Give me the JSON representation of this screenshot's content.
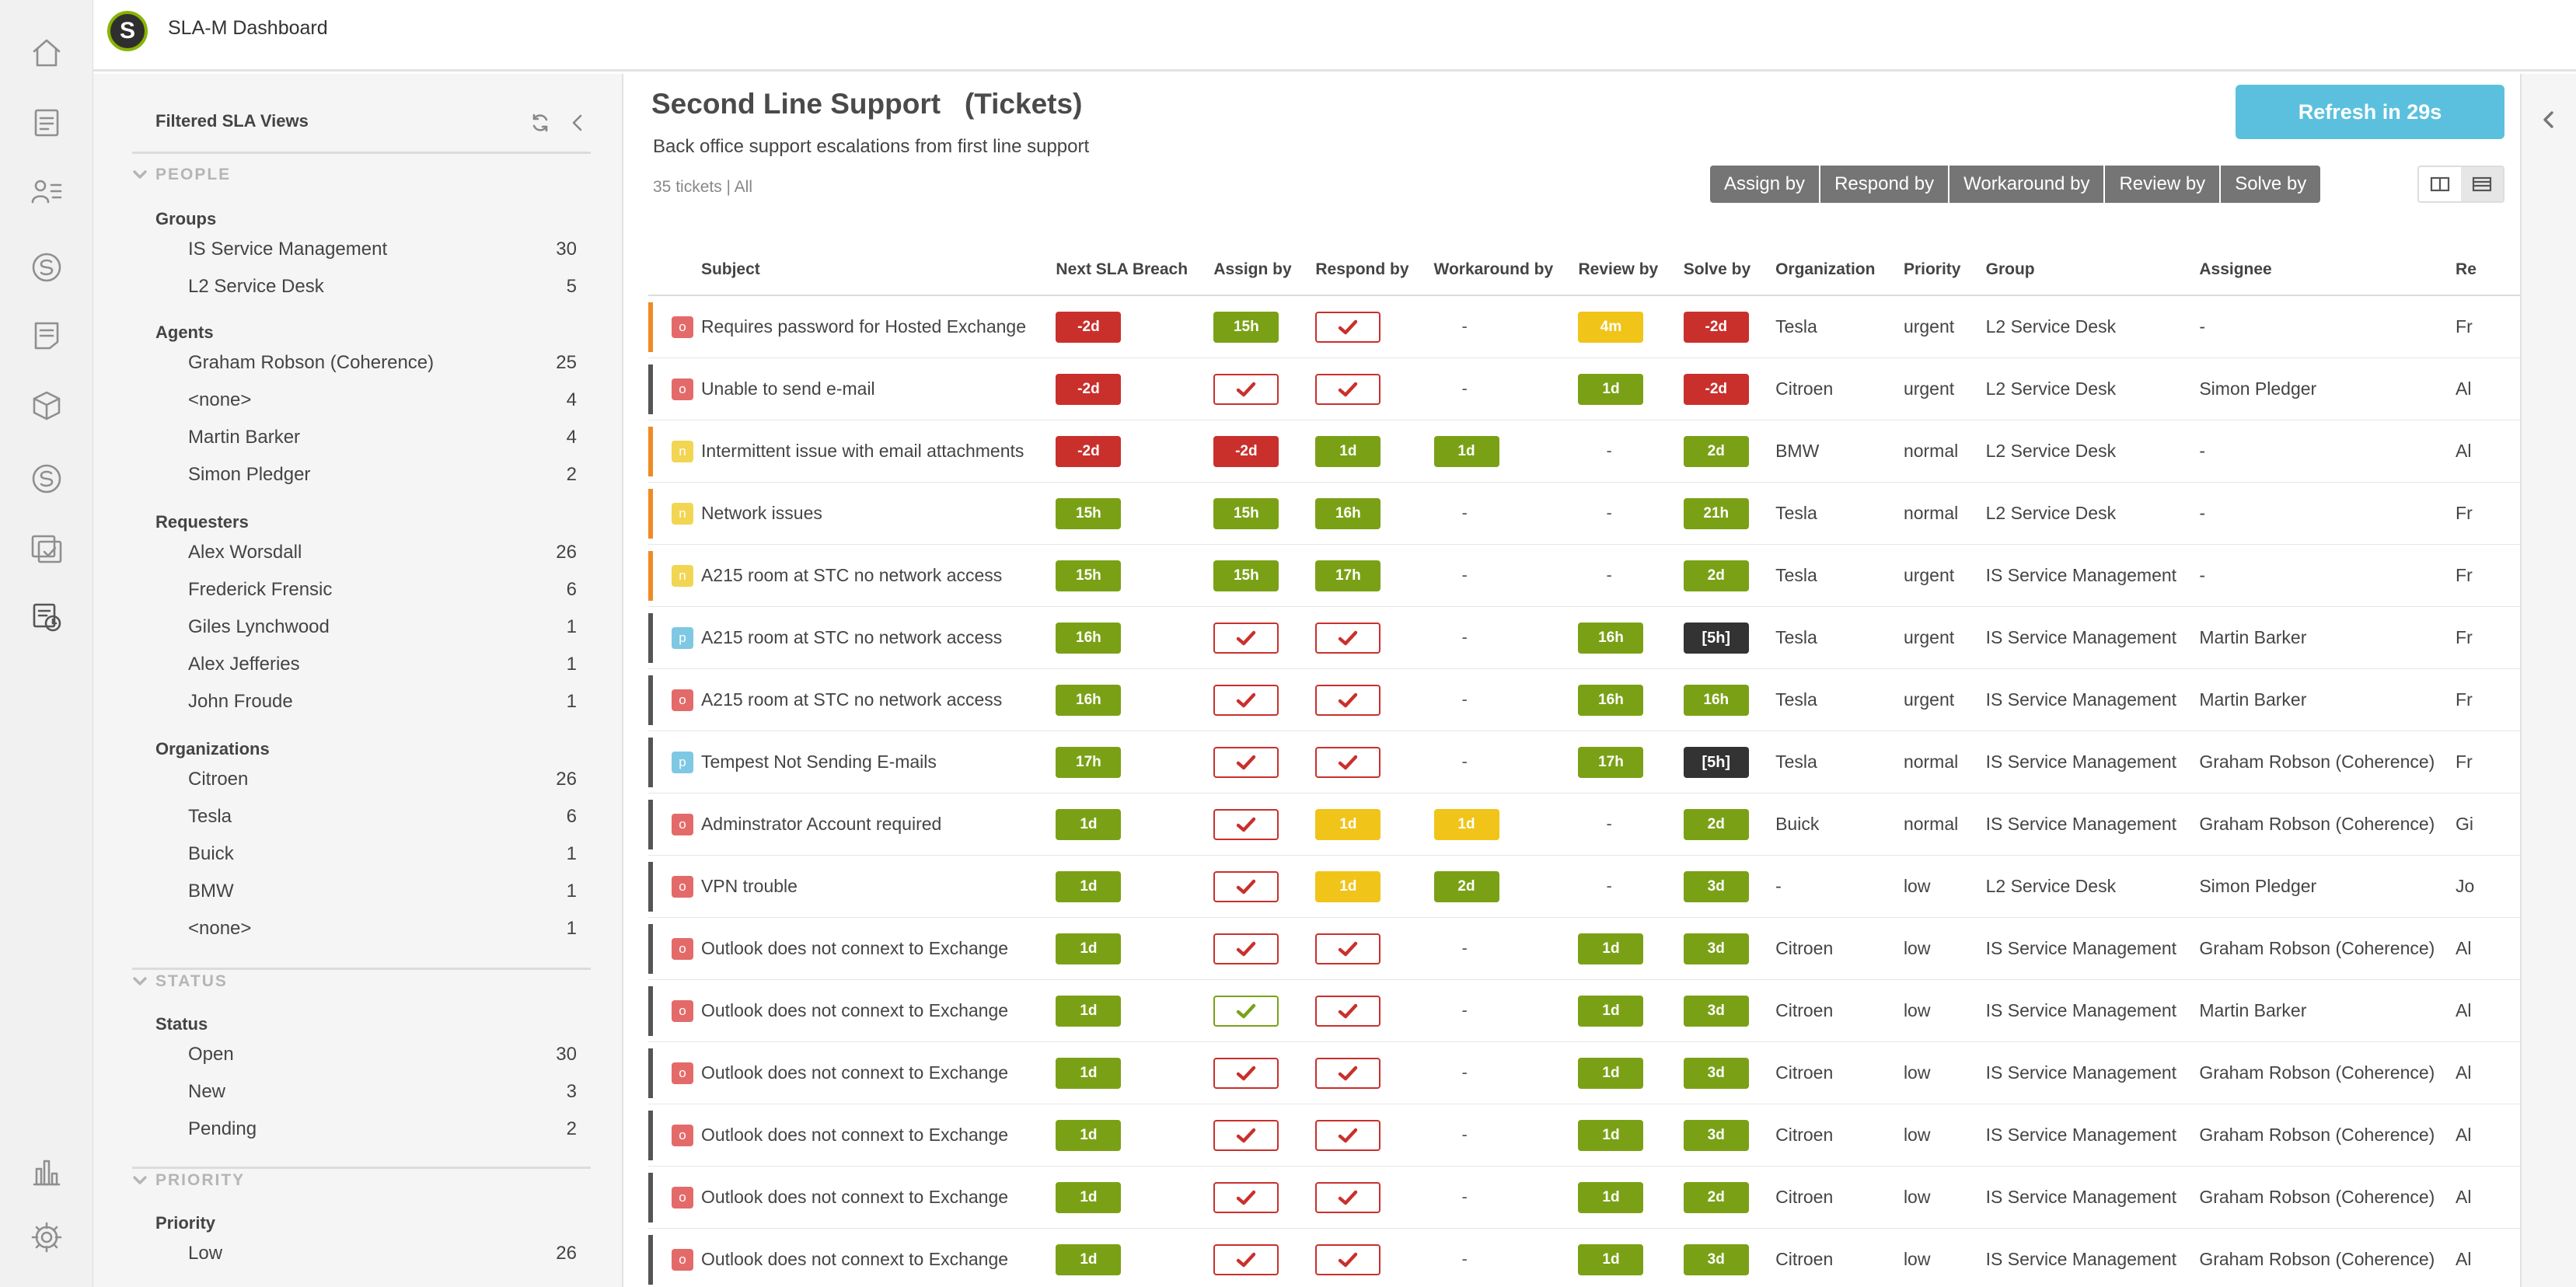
{
  "app": {
    "title": "SLA-M Dashboard",
    "logo_letter": "S"
  },
  "rail": {
    "icons": [
      "home-icon",
      "document-icon",
      "users-list-icon",
      "s-circle-icon",
      "note-icon",
      "cube-icon",
      "s-circle-icon",
      "checklist-window-icon",
      "sla-dashboard-icon",
      "bar-chart-icon",
      "gear-icon"
    ]
  },
  "sidebar": {
    "title": "Filtered SLA Views",
    "sections": {
      "people": "PEOPLE",
      "status": "STATUS",
      "priority": "PRIORITY"
    },
    "groups_label": "Groups",
    "groups": [
      {
        "label": "IS Service Management",
        "count": "30"
      },
      {
        "label": "L2 Service Desk",
        "count": "5"
      }
    ],
    "agents_label": "Agents",
    "agents": [
      {
        "label": "Graham Robson (Coherence)",
        "count": "25"
      },
      {
        "label": "<none>",
        "count": "4"
      },
      {
        "label": "Martin Barker",
        "count": "4"
      },
      {
        "label": "Simon Pledger",
        "count": "2"
      }
    ],
    "requesters_label": "Requesters",
    "requesters": [
      {
        "label": "Alex Worsdall",
        "count": "26"
      },
      {
        "label": "Frederick Frensic",
        "count": "6"
      },
      {
        "label": "Giles Lynchwood",
        "count": "1"
      },
      {
        "label": "Alex Jefferies",
        "count": "1"
      },
      {
        "label": "John Froude",
        "count": "1"
      }
    ],
    "organizations_label": "Organizations",
    "organizations": [
      {
        "label": "Citroen",
        "count": "26"
      },
      {
        "label": "Tesla",
        "count": "6"
      },
      {
        "label": "Buick",
        "count": "1"
      },
      {
        "label": "BMW",
        "count": "1"
      },
      {
        "label": "<none>",
        "count": "1"
      }
    ],
    "status_label": "Status",
    "statuses": [
      {
        "label": "Open",
        "count": "30"
      },
      {
        "label": "New",
        "count": "3"
      },
      {
        "label": "Pending",
        "count": "2"
      }
    ],
    "priority_label": "Priority",
    "priorities": [
      {
        "label": "Low",
        "count": "26"
      }
    ]
  },
  "main": {
    "title": "Second Line Support   (Tickets)",
    "subtitle": "Back office support escalations from first line support",
    "counts": "35 tickets | All",
    "refresh_label": "Refresh in 29s",
    "filters": [
      "Assign by",
      "Respond by",
      "Workaround by",
      "Review by",
      "Solve by"
    ]
  },
  "table": {
    "headers": [
      "Subject",
      "Next SLA Breach",
      "Assign by",
      "Respond by",
      "Workaround by",
      "Review by",
      "Solve by",
      "Organization",
      "Priority",
      "Group",
      "Assignee",
      "Re"
    ],
    "colors": {
      "orange_bar": "#f08a24",
      "dark_bar": "#555555",
      "status_open": "#e46a6a",
      "status_new": "#f2d553",
      "status_pending": "#7ec8e3"
    },
    "rows": [
      {
        "bar": "orange",
        "status": "o",
        "subject": "Requires password for Hosted Exchange",
        "breach": [
          "red",
          "-2d"
        ],
        "assign": [
          "green",
          "15h"
        ],
        "respond": [
          "chk-red",
          ""
        ],
        "workaround": [
          "dash",
          "-"
        ],
        "review": [
          "yellow",
          "4m"
        ],
        "solve": [
          "red",
          "-2d"
        ],
        "org": "Tesla",
        "priority": "urgent",
        "group": "L2 Service Desk",
        "assignee": "-",
        "req": "Fr"
      },
      {
        "bar": "dark",
        "status": "o",
        "subject": "Unable to send e-mail",
        "breach": [
          "red",
          "-2d"
        ],
        "assign": [
          "chk-red",
          ""
        ],
        "respond": [
          "chk-red",
          ""
        ],
        "workaround": [
          "dash",
          "-"
        ],
        "review": [
          "green",
          "1d"
        ],
        "solve": [
          "red",
          "-2d"
        ],
        "org": "Citroen",
        "priority": "urgent",
        "group": "L2 Service Desk",
        "assignee": "Simon Pledger",
        "req": "Al"
      },
      {
        "bar": "orange",
        "status": "n",
        "subject": "Intermittent issue with email attachments",
        "breach": [
          "red",
          "-2d"
        ],
        "assign": [
          "red",
          "-2d"
        ],
        "respond": [
          "green",
          "1d"
        ],
        "workaround": [
          "green",
          "1d"
        ],
        "review": [
          "dash",
          "-"
        ],
        "solve": [
          "green",
          "2d"
        ],
        "org": "BMW",
        "priority": "normal",
        "group": "L2 Service Desk",
        "assignee": "-",
        "req": "Al"
      },
      {
        "bar": "orange",
        "status": "n",
        "subject": "Network issues",
        "breach": [
          "green",
          "15h"
        ],
        "assign": [
          "green",
          "15h"
        ],
        "respond": [
          "green",
          "16h"
        ],
        "workaround": [
          "dash",
          "-"
        ],
        "review": [
          "dash",
          "-"
        ],
        "solve": [
          "green",
          "21h"
        ],
        "org": "Tesla",
        "priority": "normal",
        "group": "L2 Service Desk",
        "assignee": "-",
        "req": "Fr"
      },
      {
        "bar": "orange",
        "status": "n",
        "subject": "A215 room at STC no network access",
        "breach": [
          "green",
          "15h"
        ],
        "assign": [
          "green",
          "15h"
        ],
        "respond": [
          "green",
          "17h"
        ],
        "workaround": [
          "dash",
          "-"
        ],
        "review": [
          "dash",
          "-"
        ],
        "solve": [
          "green",
          "2d"
        ],
        "org": "Tesla",
        "priority": "urgent",
        "group": "IS Service Management",
        "assignee": "-",
        "req": "Fr"
      },
      {
        "bar": "dark",
        "status": "p",
        "subject": "A215 room at STC no network access",
        "breach": [
          "green",
          "16h"
        ],
        "assign": [
          "chk-red",
          ""
        ],
        "respond": [
          "chk-red",
          ""
        ],
        "workaround": [
          "dash",
          "-"
        ],
        "review": [
          "green",
          "16h"
        ],
        "solve": [
          "dark",
          "[5h]"
        ],
        "org": "Tesla",
        "priority": "urgent",
        "group": "IS Service Management",
        "assignee": "Martin Barker",
        "req": "Fr"
      },
      {
        "bar": "dark",
        "status": "o",
        "subject": "A215 room at STC no network access",
        "breach": [
          "green",
          "16h"
        ],
        "assign": [
          "chk-red",
          ""
        ],
        "respond": [
          "chk-red",
          ""
        ],
        "workaround": [
          "dash",
          "-"
        ],
        "review": [
          "green",
          "16h"
        ],
        "solve": [
          "green",
          "16h"
        ],
        "org": "Tesla",
        "priority": "urgent",
        "group": "IS Service Management",
        "assignee": "Martin Barker",
        "req": "Fr"
      },
      {
        "bar": "dark",
        "status": "p",
        "subject": "Tempest Not Sending E-mails",
        "breach": [
          "green",
          "17h"
        ],
        "assign": [
          "chk-red",
          ""
        ],
        "respond": [
          "chk-red",
          ""
        ],
        "workaround": [
          "dash",
          "-"
        ],
        "review": [
          "green",
          "17h"
        ],
        "solve": [
          "dark",
          "[5h]"
        ],
        "org": "Tesla",
        "priority": "normal",
        "group": "IS Service Management",
        "assignee": "Graham Robson (Coherence)",
        "req": "Fr"
      },
      {
        "bar": "dark",
        "status": "o",
        "subject": "Adminstrator Account required",
        "breach": [
          "green",
          "1d"
        ],
        "assign": [
          "chk-red",
          ""
        ],
        "respond": [
          "yellow",
          "1d"
        ],
        "workaround": [
          "yellow",
          "1d"
        ],
        "review": [
          "dash",
          "-"
        ],
        "solve": [
          "green",
          "2d"
        ],
        "org": "Buick",
        "priority": "normal",
        "group": "IS Service Management",
        "assignee": "Graham Robson (Coherence)",
        "req": "Gi"
      },
      {
        "bar": "dark",
        "status": "o",
        "subject": "VPN trouble",
        "breach": [
          "green",
          "1d"
        ],
        "assign": [
          "chk-red",
          ""
        ],
        "respond": [
          "yellow",
          "1d"
        ],
        "workaround": [
          "green",
          "2d"
        ],
        "review": [
          "dash",
          "-"
        ],
        "solve": [
          "green",
          "3d"
        ],
        "org": "-",
        "priority": "low",
        "group": "L2 Service Desk",
        "assignee": "Simon Pledger",
        "req": "Jo"
      },
      {
        "bar": "dark",
        "status": "o",
        "subject": "Outlook does not connext to Exchange",
        "breach": [
          "green",
          "1d"
        ],
        "assign": [
          "chk-red",
          ""
        ],
        "respond": [
          "chk-red",
          ""
        ],
        "workaround": [
          "dash",
          "-"
        ],
        "review": [
          "green",
          "1d"
        ],
        "solve": [
          "green",
          "3d"
        ],
        "org": "Citroen",
        "priority": "low",
        "group": "IS Service Management",
        "assignee": "Graham Robson (Coherence)",
        "req": "Al"
      },
      {
        "bar": "dark",
        "status": "o",
        "subject": "Outlook does not connext to Exchange",
        "breach": [
          "green",
          "1d"
        ],
        "assign": [
          "chk-green",
          ""
        ],
        "respond": [
          "chk-red",
          ""
        ],
        "workaround": [
          "dash",
          "-"
        ],
        "review": [
          "green",
          "1d"
        ],
        "solve": [
          "green",
          "3d"
        ],
        "org": "Citroen",
        "priority": "low",
        "group": "IS Service Management",
        "assignee": "Martin Barker",
        "req": "Al"
      },
      {
        "bar": "dark",
        "status": "o",
        "subject": "Outlook does not connext to Exchange",
        "breach": [
          "green",
          "1d"
        ],
        "assign": [
          "chk-red",
          ""
        ],
        "respond": [
          "chk-red",
          ""
        ],
        "workaround": [
          "dash",
          "-"
        ],
        "review": [
          "green",
          "1d"
        ],
        "solve": [
          "green",
          "3d"
        ],
        "org": "Citroen",
        "priority": "low",
        "group": "IS Service Management",
        "assignee": "Graham Robson (Coherence)",
        "req": "Al"
      },
      {
        "bar": "dark",
        "status": "o",
        "subject": "Outlook does not connext to Exchange",
        "breach": [
          "green",
          "1d"
        ],
        "assign": [
          "chk-red",
          ""
        ],
        "respond": [
          "chk-red",
          ""
        ],
        "workaround": [
          "dash",
          "-"
        ],
        "review": [
          "green",
          "1d"
        ],
        "solve": [
          "green",
          "3d"
        ],
        "org": "Citroen",
        "priority": "low",
        "group": "IS Service Management",
        "assignee": "Graham Robson (Coherence)",
        "req": "Al"
      },
      {
        "bar": "dark",
        "status": "o",
        "subject": "Outlook does not connext to Exchange",
        "breach": [
          "green",
          "1d"
        ],
        "assign": [
          "chk-red",
          ""
        ],
        "respond": [
          "chk-red",
          ""
        ],
        "workaround": [
          "dash",
          "-"
        ],
        "review": [
          "green",
          "1d"
        ],
        "solve": [
          "green",
          "2d"
        ],
        "org": "Citroen",
        "priority": "low",
        "group": "IS Service Management",
        "assignee": "Graham Robson (Coherence)",
        "req": "Al"
      },
      {
        "bar": "dark",
        "status": "o",
        "subject": "Outlook does not connext to Exchange",
        "breach": [
          "green",
          "1d"
        ],
        "assign": [
          "chk-red",
          ""
        ],
        "respond": [
          "chk-red",
          ""
        ],
        "workaround": [
          "dash",
          "-"
        ],
        "review": [
          "green",
          "1d"
        ],
        "solve": [
          "green",
          "3d"
        ],
        "org": "Citroen",
        "priority": "low",
        "group": "IS Service Management",
        "assignee": "Graham Robson (Coherence)",
        "req": "Al"
      }
    ]
  }
}
